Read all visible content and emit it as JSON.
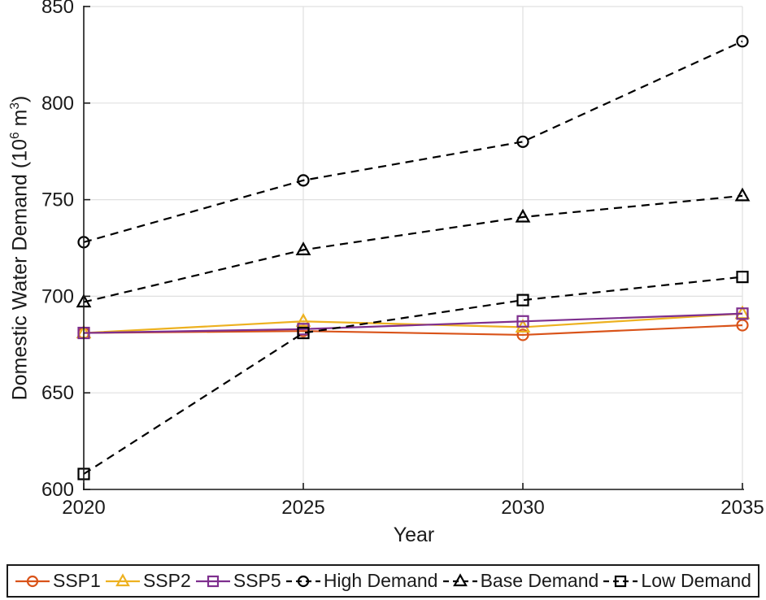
{
  "labels": {
    "ylabel_pre": "Domestic Water Demand (10",
    "ylabel_sup1": "6",
    "ylabel_mid": " m",
    "ylabel_sup2": "3",
    "ylabel_post": ")"
  },
  "chart_data": {
    "type": "line",
    "title": "",
    "xlabel": "Year",
    "ylabel": "Domestic Water Demand (10⁶ m³)",
    "x": [
      2020,
      2025,
      2030,
      2035
    ],
    "xlim": [
      2020,
      2035
    ],
    "ylim": [
      600,
      850
    ],
    "xticks": [
      2020,
      2025,
      2030,
      2035
    ],
    "yticks": [
      600,
      650,
      700,
      750,
      800,
      850
    ],
    "grid": true,
    "grid_color": "#e0e0e0",
    "axis_color": "#1a1a1a",
    "legend_position": "bottom",
    "series": [
      {
        "name": "SSP1",
        "color": "#D95319",
        "line": "solid",
        "marker": "circle",
        "values": [
          681,
          682,
          680,
          685
        ]
      },
      {
        "name": "SSP2",
        "color": "#EDB120",
        "line": "solid",
        "marker": "triangle",
        "values": [
          681,
          687,
          684,
          691
        ]
      },
      {
        "name": "SSP5",
        "color": "#7E2F8E",
        "line": "solid",
        "marker": "square",
        "values": [
          681,
          683,
          687,
          691
        ]
      },
      {
        "name": "High Demand",
        "color": "#000000",
        "line": "dashed",
        "marker": "circle",
        "values": [
          728,
          760,
          780,
          832
        ]
      },
      {
        "name": "Base Demand",
        "color": "#000000",
        "line": "dashed",
        "marker": "triangle",
        "values": [
          697,
          724,
          741,
          752
        ]
      },
      {
        "name": "Low Demand",
        "color": "#000000",
        "line": "dashed",
        "marker": "square",
        "values": [
          608,
          681,
          698,
          710
        ]
      }
    ]
  }
}
